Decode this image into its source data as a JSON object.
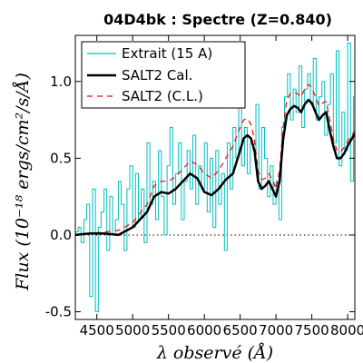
{
  "chart_data": {
    "type": "line",
    "title": "04D4bk : Spectre (Z=0.840)",
    "xlabel": "λ observé (Å)",
    "ylabel": "Flux (10⁻¹⁸ ergs/cm²/s/Å)",
    "xlim": [
      4200,
      8100
    ],
    "ylim": [
      -0.55,
      1.3
    ],
    "xticks": [
      4500,
      5000,
      5500,
      6000,
      6500,
      7000,
      7500,
      8000
    ],
    "yticks": [
      -0.5,
      0.0,
      0.5,
      1.0
    ],
    "ytick_labels": [
      "-0.5",
      "0.0",
      "0.5",
      "1.0"
    ],
    "zero_line": true,
    "legend_position": "top-left",
    "series": [
      {
        "name": "Extrait (15 A)",
        "color": "#00bfbf",
        "style": "step",
        "x": [
          4200,
          4240,
          4280,
          4320,
          4360,
          4400,
          4440,
          4480,
          4520,
          4560,
          4600,
          4640,
          4680,
          4720,
          4760,
          4800,
          4840,
          4880,
          4920,
          4960,
          5000,
          5040,
          5080,
          5120,
          5160,
          5200,
          5240,
          5280,
          5320,
          5360,
          5400,
          5440,
          5480,
          5520,
          5560,
          5600,
          5640,
          5680,
          5720,
          5760,
          5800,
          5840,
          5880,
          5920,
          5960,
          6000,
          6040,
          6080,
          6120,
          6160,
          6200,
          6240,
          6280,
          6320,
          6360,
          6400,
          6440,
          6480,
          6520,
          6560,
          6600,
          6640,
          6680,
          6720,
          6760,
          6800,
          6840,
          6880,
          6920,
          6960,
          7000,
          7040,
          7080,
          7120,
          7160,
          7200,
          7240,
          7280,
          7320,
          7360,
          7400,
          7440,
          7480,
          7520,
          7560,
          7600,
          7640,
          7680,
          7720,
          7760,
          7800,
          7840,
          7880,
          7920,
          7960,
          8000,
          8040,
          8080
        ],
        "y": [
          0.02,
          0.05,
          -0.05,
          0.1,
          0.2,
          -0.4,
          0.3,
          -0.5,
          0.05,
          0.15,
          0.3,
          -0.1,
          0.25,
          0.0,
          0.1,
          0.35,
          0.2,
          -0.1,
          0.3,
          0.45,
          0.05,
          0.4,
          0.1,
          0.3,
          -0.05,
          0.6,
          0.2,
          0.35,
          0.1,
          0.55,
          0.25,
          0.0,
          0.45,
          0.7,
          0.2,
          0.4,
          0.6,
          0.1,
          0.35,
          0.55,
          0.3,
          0.65,
          0.2,
          0.45,
          0.3,
          0.6,
          0.15,
          0.5,
          0.05,
          0.55,
          0.2,
          0.4,
          -0.1,
          0.6,
          0.3,
          0.7,
          0.5,
          0.9,
          0.45,
          0.7,
          0.4,
          0.6,
          0.55,
          0.85,
          0.3,
          0.7,
          0.5,
          0.25,
          0.45,
          0.2,
          0.35,
          0.1,
          0.7,
          0.9,
          1.05,
          0.75,
          0.95,
          0.8,
          1.1,
          0.7,
          0.95,
          1.05,
          0.85,
          1.15,
          0.75,
          0.9,
          1.0,
          0.65,
          0.85,
          1.05,
          0.6,
          1.2,
          0.45,
          0.8,
          0.55,
          1.25,
          0.35,
          0.9
        ]
      },
      {
        "name": "SALT2 Cal.",
        "color": "#000000",
        "style": "solid",
        "x": [
          4200,
          4400,
          4600,
          4800,
          5000,
          5200,
          5300,
          5400,
          5500,
          5600,
          5700,
          5800,
          5900,
          6000,
          6100,
          6200,
          6300,
          6400,
          6500,
          6550,
          6600,
          6650,
          6700,
          6750,
          6800,
          6850,
          6900,
          6950,
          7000,
          7050,
          7100,
          7150,
          7200,
          7250,
          7300,
          7350,
          7400,
          7450,
          7500,
          7550,
          7600,
          7650,
          7700,
          7750,
          7800,
          7850,
          7900,
          7950,
          8000,
          8100
        ],
        "y": [
          0.0,
          0.01,
          0.01,
          0.0,
          0.05,
          0.15,
          0.25,
          0.28,
          0.27,
          0.3,
          0.35,
          0.4,
          0.37,
          0.28,
          0.26,
          0.3,
          0.36,
          0.4,
          0.55,
          0.63,
          0.65,
          0.63,
          0.55,
          0.35,
          0.3,
          0.32,
          0.35,
          0.3,
          0.25,
          0.35,
          0.62,
          0.78,
          0.82,
          0.84,
          0.83,
          0.8,
          0.85,
          0.88,
          0.86,
          0.8,
          0.75,
          0.78,
          0.8,
          0.68,
          0.58,
          0.5,
          0.5,
          0.53,
          0.58,
          0.66
        ]
      },
      {
        "name": "SALT2 (C.L.)",
        "color": "#ff0000",
        "style": "dashed",
        "x": [
          4200,
          4400,
          4600,
          4800,
          5000,
          5200,
          5300,
          5400,
          5500,
          5600,
          5700,
          5800,
          5900,
          6000,
          6100,
          6200,
          6300,
          6400,
          6500,
          6550,
          6600,
          6650,
          6700,
          6750,
          6800,
          6850,
          6900,
          6950,
          7000,
          7050,
          7100,
          7150,
          7200,
          7250,
          7300,
          7350,
          7400,
          7450,
          7500,
          7550,
          7600,
          7650,
          7700,
          7750,
          7800,
          7850,
          7900,
          7950,
          8000,
          8100
        ],
        "y": [
          0.0,
          0.01,
          0.02,
          0.03,
          0.08,
          0.2,
          0.32,
          0.35,
          0.35,
          0.38,
          0.43,
          0.48,
          0.46,
          0.4,
          0.37,
          0.42,
          0.5,
          0.58,
          0.7,
          0.75,
          0.76,
          0.72,
          0.62,
          0.42,
          0.36,
          0.37,
          0.4,
          0.36,
          0.3,
          0.42,
          0.7,
          0.88,
          0.92,
          0.93,
          0.92,
          0.9,
          0.95,
          0.98,
          0.96,
          0.9,
          0.84,
          0.86,
          0.87,
          0.75,
          0.63,
          0.55,
          0.54,
          0.57,
          0.61,
          0.68
        ]
      }
    ]
  }
}
